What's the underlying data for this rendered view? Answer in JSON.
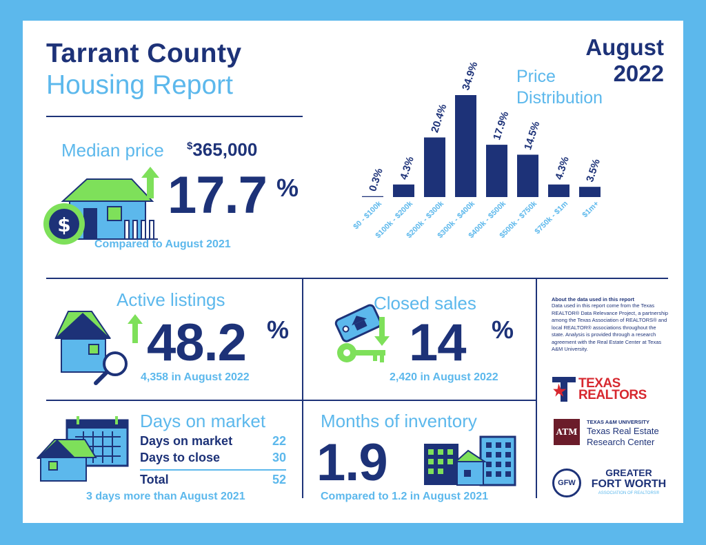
{
  "header": {
    "title": "Tarrant County",
    "subtitle": "Housing Report",
    "month": "August",
    "year": "2022"
  },
  "median": {
    "label": "Median price",
    "currency": "$",
    "value": "365,000",
    "change": "17.7",
    "pct": "%",
    "caption": "Compared to August 2021"
  },
  "chart_data": {
    "type": "bar",
    "title": "Price Distribution",
    "title_line1": "Price",
    "title_line2": "Distribution",
    "categories": [
      "$0 - $100k",
      "$100k - $200k",
      "$200k - $300k",
      "$300k - $400k",
      "$400k - $500k",
      "$500k - $750k",
      "$750k - $1m",
      "$1m+"
    ],
    "values": [
      0.3,
      4.3,
      20.4,
      34.9,
      17.9,
      14.5,
      4.3,
      3.5
    ],
    "value_labels": [
      "0.3%",
      "4.3%",
      "20.4%",
      "34.9%",
      "17.9%",
      "14.5%",
      "4.3%",
      "3.5%"
    ],
    "unit": "%",
    "ylim": [
      0,
      34.9
    ],
    "grid": false,
    "color": "#1d3278"
  },
  "active": {
    "title": "Active listings",
    "change": "48.2",
    "pct": "%",
    "caption": "4,358 in August 2022"
  },
  "closed": {
    "title": "Closed sales",
    "change": "14",
    "pct": "%",
    "caption": "2,420 in August 2022"
  },
  "dom": {
    "title": "Days on market",
    "rows": [
      {
        "label": "Days on market",
        "value": "22"
      },
      {
        "label": "Days to close",
        "value": "30"
      }
    ],
    "total_label": "Total",
    "total_value": "52",
    "caption": "3 days more than August 2021"
  },
  "inventory": {
    "title": "Months of inventory",
    "value": "1.9",
    "caption": "Compared to 1.2 in August 2021"
  },
  "about": {
    "heading": "About the data used in this report",
    "body": "Data used in this report come from the Texas REALTOR® Data Relevance Project, a partnership among the Texas Association of REALTORS® and local REALTOR® associations throughout the state. Analysis is provided through a research agreement with the Real Estate Center at Texas A&M University."
  },
  "logos": {
    "texas_realtors_line1": "TEXAS",
    "texas_realtors_line2": "REALTORS",
    "tamu_top": "TEXAS A&M UNIVERSITY",
    "tamu_line1": "Texas Real Estate",
    "tamu_line2": "Research Center",
    "tamu_mark": "ATM",
    "gfw_line1": "GREATER",
    "gfw_line2": "FORT WORTH",
    "gfw_line3": "ASSOCIATION OF REALTORS®",
    "gfw_mark": "GFW"
  },
  "colors": {
    "navy": "#1d3278",
    "sky": "#5cb8ec",
    "green": "#7ee05a",
    "red": "#d7282f",
    "maroon": "#6b1c2a"
  }
}
